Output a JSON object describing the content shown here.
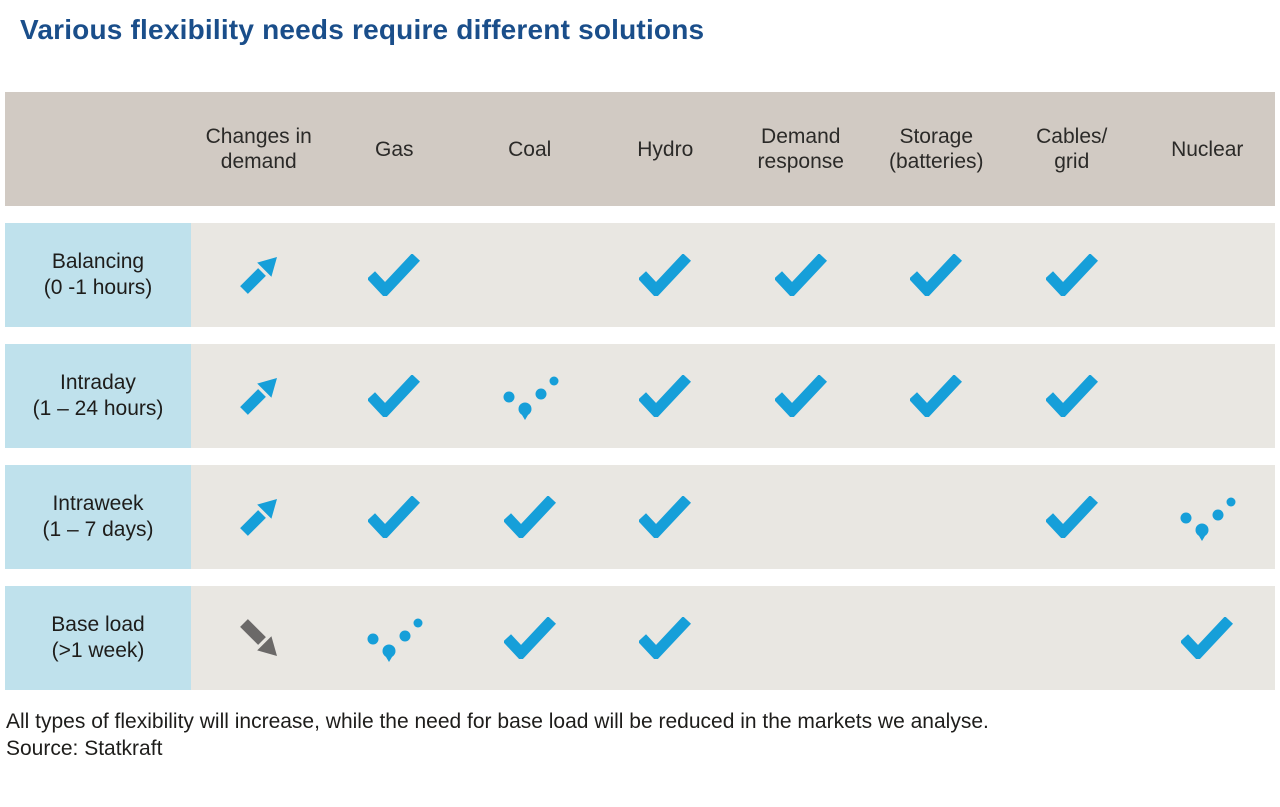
{
  "title": "Various flexibility needs require different solutions",
  "colors": {
    "title_blue": "#1a4e8a",
    "header_bg": "#d1cac3",
    "row_label_bg": "#bfe1ec",
    "row_bg": "#e9e7e2",
    "icon_blue": "#169fd9",
    "icon_gray": "#6b6968"
  },
  "icons": {
    "arrow-up": "trend-up-arrow-icon",
    "arrow-down": "trend-down-arrow-icon",
    "check": "check-icon",
    "dotted": "partial-dotted-check-icon"
  },
  "table": {
    "columns": [
      {
        "id": "changes-in-demand",
        "lines": [
          "Changes in",
          "demand"
        ]
      },
      {
        "id": "gas",
        "lines": [
          "Gas"
        ]
      },
      {
        "id": "coal",
        "lines": [
          "Coal"
        ]
      },
      {
        "id": "hydro",
        "lines": [
          "Hydro"
        ]
      },
      {
        "id": "demand-response",
        "lines": [
          "Demand",
          "response"
        ]
      },
      {
        "id": "storage-batteries",
        "lines": [
          "Storage",
          "(batteries)"
        ]
      },
      {
        "id": "cables-grid",
        "lines": [
          "Cables/",
          "grid"
        ]
      },
      {
        "id": "nuclear",
        "lines": [
          "Nuclear"
        ]
      }
    ],
    "rows": [
      {
        "id": "balancing",
        "label": "Balancing",
        "sublabel": "(0 -1 hours)",
        "cells": [
          "arrow-up",
          "check",
          "",
          "check",
          "check",
          "check",
          "check",
          ""
        ]
      },
      {
        "id": "intraday",
        "label": "Intraday",
        "sublabel": "(1 – 24 hours)",
        "cells": [
          "arrow-up",
          "check",
          "dotted",
          "check",
          "check",
          "check",
          "check",
          ""
        ]
      },
      {
        "id": "intraweek",
        "label": "Intraweek",
        "sublabel": "(1 – 7 days)",
        "cells": [
          "arrow-up",
          "check",
          "check",
          "check",
          "",
          "",
          "check",
          "dotted"
        ]
      },
      {
        "id": "base-load",
        "label": "Base load",
        "sublabel": "(>1 week)",
        "cells": [
          "arrow-down",
          "dotted",
          "check",
          "check",
          "",
          "",
          "",
          "check"
        ]
      }
    ]
  },
  "footer": {
    "note": "All types of flexibility will increase, while the need for base load will be reduced in the markets we analyse.",
    "source": "Source: Statkraft"
  }
}
